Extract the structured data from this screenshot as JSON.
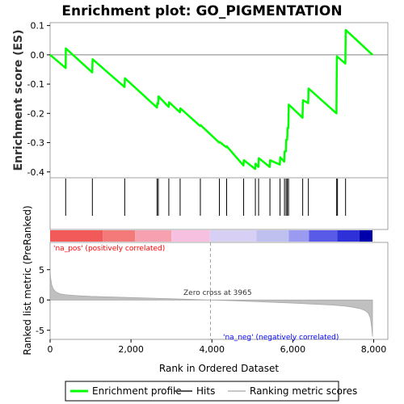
{
  "chart_data": {
    "type": "line",
    "title": "Enrichment plot: GO_PIGMENTATION",
    "es_panel": {
      "ylabel": "Enrichment score (ES)",
      "ylim": [
        -0.42,
        0.11
      ],
      "yticks": [
        0.1,
        0.0,
        -0.1,
        -0.2,
        -0.3,
        -0.4
      ],
      "ytick_labels": [
        "0.1",
        "0.0",
        "-0.1",
        "-0.2",
        "-0.3",
        "-0.4"
      ],
      "series": [
        {
          "name": "Enrichment profile",
          "color": "#00ff00",
          "x": [
            0,
            385,
            390,
            1040,
            1050,
            1840,
            1850,
            2640,
            2650,
            2670,
            2680,
            2930,
            2940,
            3210,
            3220,
            3710,
            3720,
            4180,
            4190,
            4360,
            4370,
            4780,
            4790,
            5070,
            5080,
            5150,
            5160,
            5430,
            5440,
            5680,
            5690,
            5790,
            5800,
            5830,
            5840,
            5860,
            5870,
            5890,
            5900,
            6240,
            6250,
            6380,
            6390,
            7080,
            7090,
            7300,
            7310,
            7970
          ],
          "y": [
            0.0,
            -0.045,
            0.022,
            -0.06,
            -0.015,
            -0.11,
            -0.08,
            -0.18,
            -0.165,
            -0.168,
            -0.142,
            -0.178,
            -0.162,
            -0.196,
            -0.183,
            -0.243,
            -0.24,
            -0.3,
            -0.298,
            -0.316,
            -0.313,
            -0.378,
            -0.36,
            -0.39,
            -0.372,
            -0.383,
            -0.353,
            -0.383,
            -0.36,
            -0.375,
            -0.35,
            -0.365,
            -0.33,
            -0.33,
            -0.29,
            -0.29,
            -0.25,
            -0.25,
            -0.17,
            -0.215,
            -0.155,
            -0.165,
            -0.115,
            -0.2,
            -0.005,
            -0.03,
            0.085,
            0.0
          ]
        }
      ]
    },
    "hits": {
      "name": "Hits",
      "color": "#000000",
      "positions": [
        385,
        1045,
        1845,
        2645,
        2675,
        2935,
        3215,
        3715,
        4185,
        4365,
        4785,
        5075,
        5155,
        5435,
        5685,
        5795,
        5835,
        5865,
        5895,
        6245,
        6385,
        7085,
        7105,
        7305
      ]
    },
    "heatmap_bar": {
      "colors": [
        "#f25a5a",
        "#f47a7a",
        "#f6a0b0",
        "#f8c0e0",
        "#d8d0f4",
        "#c0c0f0",
        "#9a9af0",
        "#5a5ae8",
        "#3030d8",
        "#0000aa"
      ],
      "breaks": [
        0,
        1300,
        2100,
        3000,
        3950,
        5100,
        5900,
        6400,
        7100,
        7650,
        7970
      ]
    },
    "ranking_panel": {
      "type": "area",
      "ylabel": "Ranked list metric (PreRanked)",
      "ylim": [
        -6.5,
        9.5
      ],
      "yticks": [
        5,
        0,
        -5
      ],
      "ytick_labels": [
        "5",
        "0",
        "-5"
      ],
      "series": [
        {
          "name": "Ranking metric scores",
          "color": "#c0c0c0",
          "x": [
            0,
            10,
            40,
            80,
            150,
            250,
            400,
            700,
            1000,
            1500,
            2000,
            2500,
            3000,
            3500,
            3965,
            4500,
            5000,
            5500,
            6000,
            6500,
            7000,
            7300,
            7500,
            7700,
            7800,
            7870,
            7920,
            7950,
            7970
          ],
          "y": [
            5.2,
            3.8,
            2.5,
            1.8,
            1.3,
            1.0,
            0.85,
            0.7,
            0.6,
            0.5,
            0.4,
            0.3,
            0.2,
            0.1,
            0.0,
            -0.12,
            -0.25,
            -0.38,
            -0.52,
            -0.68,
            -0.85,
            -1.0,
            -1.2,
            -1.5,
            -1.8,
            -2.2,
            -3.0,
            -4.5,
            -6.0
          ]
        }
      ],
      "zero_cross_label": "Zero cross at 3965",
      "zero_cross_x": 3965,
      "pos_label": "'na_pos' (positively correlated)",
      "neg_label": "'na_neg' (negatively correlated)",
      "pos_color": "#ff0000",
      "neg_color": "#0000ff"
    },
    "x_axis": {
      "xlabel": "Rank in Ordered Dataset",
      "xlim": [
        0,
        8350
      ],
      "xticks": [
        0,
        2000,
        4000,
        6000,
        8000
      ],
      "xtick_labels": [
        "0",
        "2,000",
        "4,000",
        "6,000",
        "8,000"
      ]
    },
    "legend": {
      "placement": "bottom",
      "items": [
        {
          "label": "Enrichment profile",
          "color": "#00ff00",
          "kind": "thick-line"
        },
        {
          "label": "Hits",
          "color": "#555555",
          "kind": "line"
        },
        {
          "label": "Ranking metric scores",
          "color": "#c8c8c8",
          "kind": "line"
        }
      ]
    }
  }
}
